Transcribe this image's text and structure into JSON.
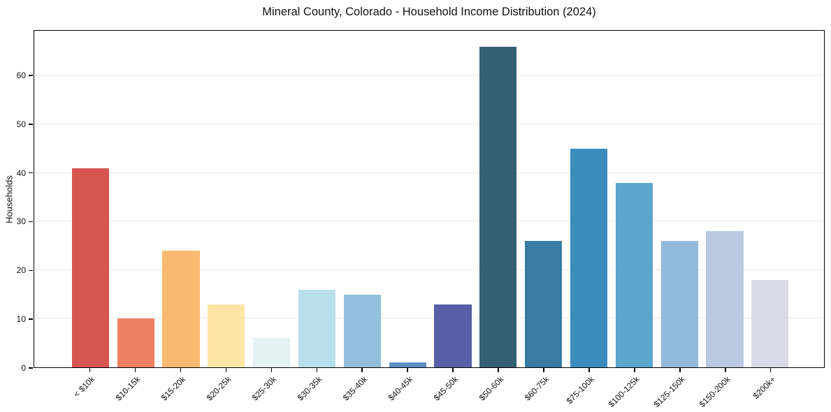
{
  "chart_data": {
    "type": "bar",
    "title": "Mineral County, Colorado - Household Income Distribution (2024)",
    "xlabel": "",
    "ylabel": "Households",
    "categories": [
      "< $10k",
      "$10-15k",
      "$15-20k",
      "$20-25k",
      "$25-30k",
      "$30-35k",
      "$35-40k",
      "$40-45k",
      "$45-50k",
      "$50-60k",
      "$60-75k",
      "$75-100k",
      "$100-125k",
      "$125-150k",
      "$150-200k",
      "$200k+"
    ],
    "values": [
      41,
      10,
      24,
      13,
      6,
      16,
      15,
      1,
      13,
      66,
      26,
      45,
      38,
      26,
      28,
      18
    ],
    "bar_colors": [
      "#d6554e",
      "#ee8063",
      "#f9b971",
      "#fde5a7",
      "#e4f2f3",
      "#badfec",
      "#92c0dc",
      "#5d8fc7",
      "#575fa7",
      "#355f72",
      "#397ba3",
      "#3b8cbe",
      "#5aa6cd",
      "#93badc",
      "#b9c9e1",
      "#dadae8"
    ],
    "ylim": [
      0,
      69.3
    ],
    "yticks": [
      0,
      10,
      20,
      30,
      40,
      50,
      60
    ],
    "grid": "horizontal",
    "gridline_color": "#e9e9e9",
    "x_tick_rotation": -45,
    "legend": "none",
    "background": "#ffffff",
    "spine_color": "#000000"
  }
}
